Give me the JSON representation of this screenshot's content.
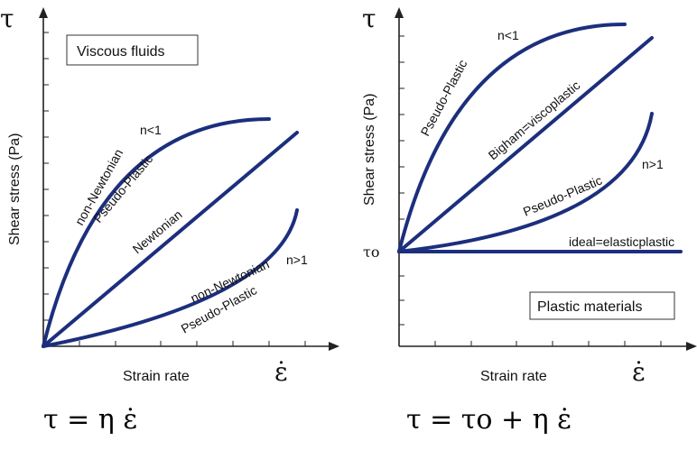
{
  "colors": {
    "curve": "#1c2f7d",
    "axis": "#222222"
  },
  "left": {
    "y_symbol": "τ",
    "y_axis_title": "Shear stress (Pa)",
    "x_axis_title": "Strain rate",
    "x_symbol": "ε̇",
    "box_label": "Viscous fluids",
    "formula": "τ = η ε̇",
    "labels": {
      "n_lt_1": "n<1",
      "non_newtonian_top": "non-Newtonian",
      "pseudo_plastic_top": "Pseudo-Plastic",
      "newtonian": "Newtonian",
      "n_gt_1": "n>1",
      "non_newtonian_bottom": "non-Newtonian",
      "pseudo_plastic_bottom": "Pseudo-Plastic"
    }
  },
  "right": {
    "y_symbol": "τ",
    "y_axis_title": "Shear stress (Pa)",
    "x_axis_title": "Strain rate",
    "x_symbol": "ε̇",
    "tau0": "τo",
    "box_label": "Plastic materials",
    "formula": "τ = τo + η ε̇",
    "labels": {
      "n_lt_1": "n<1",
      "pseudo_plastic_top": "Pseudo-Plastic",
      "bigham": "Bigham=viscoplastic",
      "n_gt_1": "n>1",
      "pseudo_plastic_bottom": "Pseudo-Plastic",
      "ideal": "ideal=elasticplastic"
    }
  }
}
